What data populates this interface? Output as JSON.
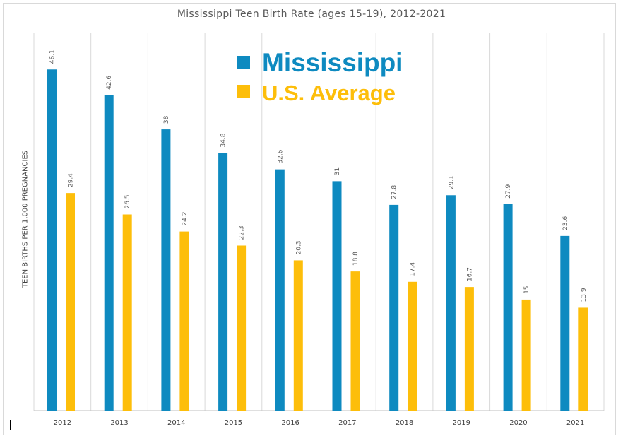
{
  "chart_data": {
    "type": "bar",
    "title": "Mississippi Teen Birth Rate (ages 15-19), 2012-2021",
    "xlabel": "",
    "ylabel": "TEEN BIRTHS PER 1,000 PREGNANCIES",
    "ylim": [
      0,
      50
    ],
    "grid": "vertical",
    "legend": "top-center",
    "categories": [
      "2012",
      "2013",
      "2014",
      "2015",
      "2016",
      "2017",
      "2018",
      "2019",
      "2020",
      "2021"
    ],
    "series": [
      {
        "name": "Mississippi",
        "color": "#0e8ac0",
        "values": [
          46.1,
          42.6,
          38,
          34.8,
          32.6,
          31,
          27.8,
          29.1,
          27.9,
          23.6
        ]
      },
      {
        "name": "U.S. Average",
        "color": "#fdbe0a",
        "values": [
          29.4,
          26.5,
          24.2,
          22.3,
          20.3,
          18.8,
          17.4,
          16.7,
          15,
          13.9
        ]
      }
    ]
  }
}
